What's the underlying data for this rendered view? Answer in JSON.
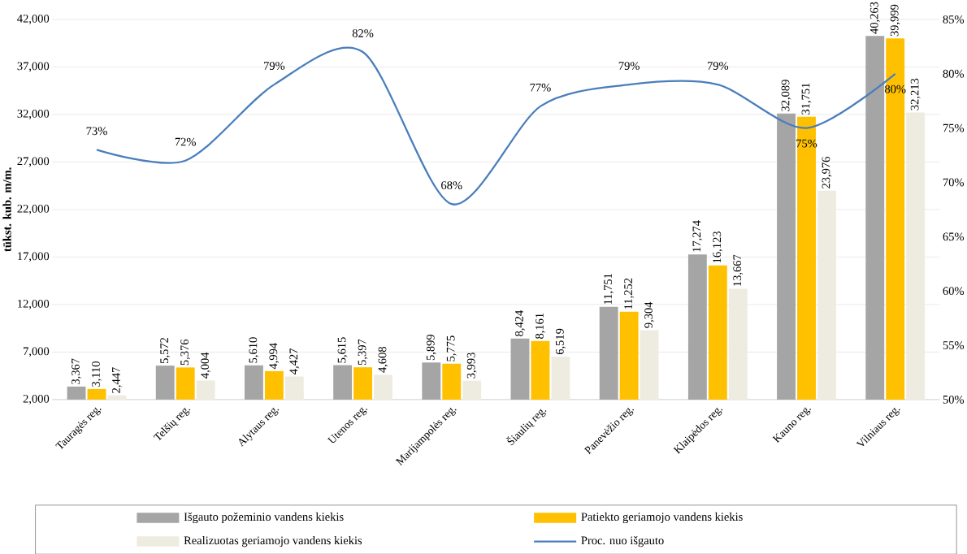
{
  "chart_data": {
    "type": "bar",
    "ylabel": "tūkst. kub. m/m.",
    "categories": [
      "Tauragės reg.",
      "Telšių reg.",
      "Alytaus reg.",
      "Utenos reg.",
      "Marijampolės reg.",
      "Šiaulių reg.",
      "Panevėžio reg.",
      "Klaipėdos reg.",
      "Kauno reg.",
      "Vilniaus reg."
    ],
    "series": [
      {
        "name": "Išgauto požeminio vandens kiekis",
        "color": "#a5a5a5",
        "values": [
          3367,
          5572,
          5610,
          5615,
          5899,
          8424,
          11751,
          17274,
          32089,
          40263
        ],
        "value_labels": [
          "3,367",
          "5,572",
          "5,610",
          "5,615",
          "5,899",
          "8,424",
          "11,751",
          "17,274",
          "32,089",
          "40,263"
        ]
      },
      {
        "name": "Patiekto geriamojo vandens kiekis",
        "color": "#ffc000",
        "values": [
          3110,
          5376,
          4994,
          5397,
          5775,
          8161,
          11252,
          16123,
          31751,
          39999
        ],
        "value_labels": [
          "3,110",
          "5,376",
          "4,994",
          "5,397",
          "5,775",
          "8,161",
          "11,252",
          "16,123",
          "31,751",
          "39,999"
        ]
      },
      {
        "name": "Realizuotas geriamojo vandens kiekis",
        "color": "#eeece1",
        "values": [
          2447,
          4004,
          4427,
          4608,
          3993,
          6519,
          9304,
          13667,
          23976,
          32213
        ],
        "value_labels": [
          "2,447",
          "4,004",
          "4,427",
          "4,608",
          "3,993",
          "6,519",
          "9,304",
          "13,667",
          "23,976",
          "32,213"
        ]
      },
      {
        "name": "Proc. nuo išgauto",
        "type": "line",
        "axis": "y2",
        "color": "#4a7ebb",
        "values": [
          73,
          72,
          79,
          82,
          68,
          77,
          79,
          79,
          75,
          80
        ],
        "value_labels": [
          "73%",
          "72%",
          "79%",
          "82%",
          "68%",
          "77%",
          "79%",
          "79%",
          "75%",
          "80%"
        ]
      }
    ],
    "ylim": [
      2000,
      42000
    ],
    "yticks": [
      {
        "value": 2000,
        "label": "2,000"
      },
      {
        "value": 7000,
        "label": "7,000"
      },
      {
        "value": 12000,
        "label": "12,000"
      },
      {
        "value": 17000,
        "label": "17,000"
      },
      {
        "value": 22000,
        "label": "22,000"
      },
      {
        "value": 27000,
        "label": "27,000"
      },
      {
        "value": 32000,
        "label": "32,000"
      },
      {
        "value": 37000,
        "label": "37,000"
      },
      {
        "value": 42000,
        "label": "42,000"
      }
    ],
    "y2lim": [
      50,
      85
    ],
    "y2ticks": [
      {
        "value": 50,
        "label": "50%"
      },
      {
        "value": 55,
        "label": "55%"
      },
      {
        "value": 60,
        "label": "60%"
      },
      {
        "value": 65,
        "label": "65%"
      },
      {
        "value": 70,
        "label": "70%"
      },
      {
        "value": 75,
        "label": "75%"
      },
      {
        "value": 80,
        "label": "80%"
      },
      {
        "value": 85,
        "label": "85%"
      }
    ],
    "grid": "y",
    "legend": "bottom",
    "marker": "none",
    "line_style": "solid"
  }
}
